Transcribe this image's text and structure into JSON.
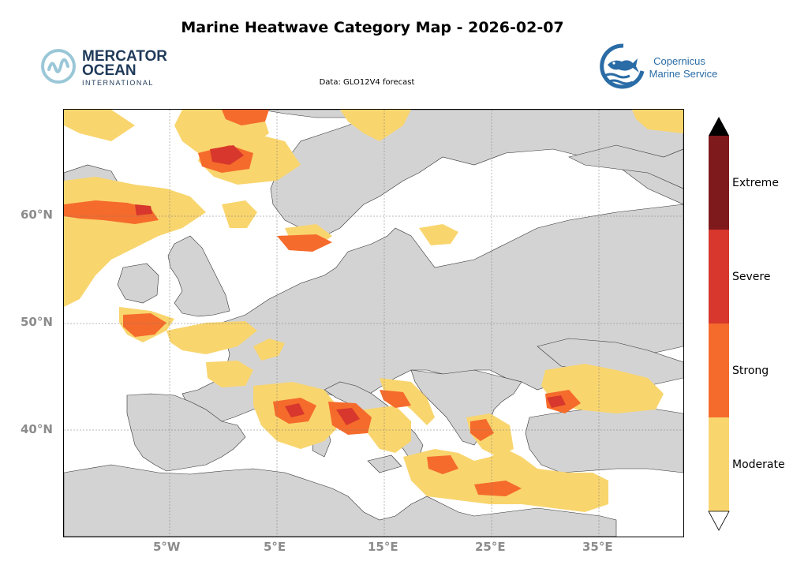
{
  "title": "Marine Heatwave Category Map - 2026-02-07",
  "subtitle": "Data: GLO12V4 forecast",
  "logos": {
    "left": {
      "line1": "MERCATOR",
      "line2": "OCEAN",
      "line3": "INTERNATIONAL",
      "color": "#1f3a5a",
      "mark_color": "#9ac7d8"
    },
    "right": {
      "line1": "Copernicus",
      "line2": "Marine Service",
      "color": "#2a6ca6"
    }
  },
  "map": {
    "lat_ticks": [
      "60°N",
      "50°N",
      "40°N"
    ],
    "lon_ticks": [
      "5°W",
      "5°E",
      "15°E",
      "25°E",
      "35°E"
    ],
    "land_color": "#d3d3d3",
    "ocean_color": "#ffffff"
  },
  "colorbar": {
    "categories": [
      {
        "label": "Moderate",
        "color": "#f9d56e"
      },
      {
        "label": "Strong",
        "color": "#f56b2c"
      },
      {
        "label": "Severe",
        "color": "#d7372c"
      },
      {
        "label": "Extreme",
        "color": "#7f1a1c"
      }
    ]
  }
}
